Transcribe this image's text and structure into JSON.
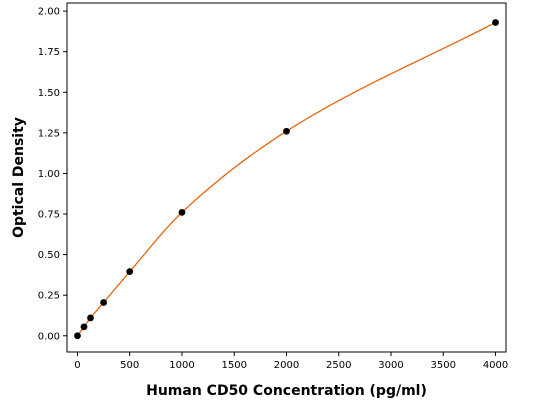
{
  "chart_data": {
    "type": "scatter",
    "title": "",
    "xlabel": "Human CD50 Concentration (pg/ml)",
    "ylabel": "Optical Density",
    "xlim": [
      -100,
      4100
    ],
    "ylim": [
      -0.1,
      2.05
    ],
    "x_ticks": [
      0,
      500,
      1000,
      1500,
      2000,
      2500,
      3000,
      3500,
      4000
    ],
    "x_tick_labels": [
      "0",
      "500",
      "1000",
      "1500",
      "2000",
      "2500",
      "3000",
      "3500",
      "4000"
    ],
    "y_ticks": [
      0,
      0.25,
      0.5,
      0.75,
      1.0,
      1.25,
      1.5,
      1.75,
      2.0
    ],
    "y_tick_labels": [
      "0.00",
      "0.25",
      "0.50",
      "0.75",
      "1.00",
      "1.25",
      "1.50",
      "1.75",
      "2.00"
    ],
    "grid": false,
    "series": [
      {
        "points": [
          {
            "x": 0,
            "y": 0.0
          },
          {
            "x": 62.5,
            "y": 0.055
          },
          {
            "x": 125,
            "y": 0.11
          },
          {
            "x": 250,
            "y": 0.205
          },
          {
            "x": 500,
            "y": 0.395
          },
          {
            "x": 1000,
            "y": 0.76
          },
          {
            "x": 2000,
            "y": 1.26
          },
          {
            "x": 4000,
            "y": 1.93
          }
        ],
        "marker_color": "#000000",
        "fit_curve": true,
        "fit_color": "#e8650c"
      }
    ]
  }
}
